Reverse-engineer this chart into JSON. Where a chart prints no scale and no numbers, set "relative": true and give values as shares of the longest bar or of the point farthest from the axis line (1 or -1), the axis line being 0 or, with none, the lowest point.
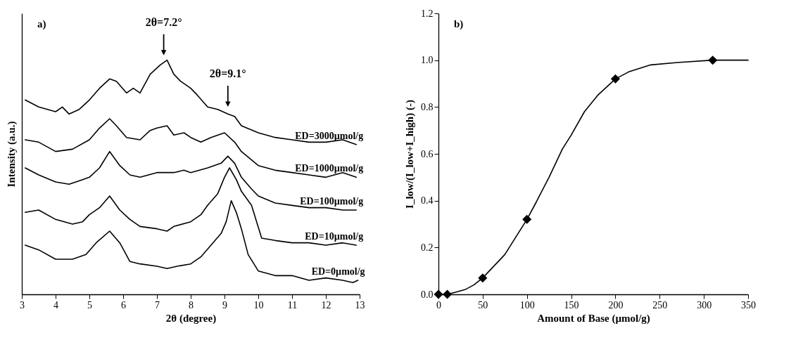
{
  "chart_data": [
    {
      "type": "line",
      "title": "a)",
      "xlabel": "2θ (degree)",
      "ylabel": "Intensity (a.u.)",
      "relative": true,
      "tick_labels": "x",
      "xlim": [
        3,
        13
      ],
      "xticks": [
        3,
        4,
        5,
        6,
        7,
        8,
        9,
        10,
        11,
        12,
        13
      ],
      "grid": false,
      "legend": false,
      "marker": "none",
      "line_style": "solid",
      "annotations": [
        {
          "text": "2θ=7.2°",
          "x": 7.2,
          "y": 1.0
        },
        {
          "text": "2θ=9.1°",
          "x": 9.1,
          "y": 0.78
        }
      ],
      "series": [
        {
          "name": "ED=3000µmol/g",
          "color": "#000000",
          "x": [
            3.1,
            3.5,
            4.0,
            4.2,
            4.4,
            4.7,
            5.0,
            5.3,
            5.6,
            5.8,
            6.1,
            6.3,
            6.5,
            6.8,
            7.1,
            7.3,
            7.5,
            7.7,
            8.0,
            8.2,
            8.5,
            8.8,
            9.1,
            9.3,
            9.5,
            10.0,
            10.5,
            11.0,
            11.5,
            12.0,
            12.5,
            12.9
          ],
          "values": [
            0.83,
            0.8,
            0.78,
            0.8,
            0.77,
            0.79,
            0.83,
            0.88,
            0.92,
            0.91,
            0.86,
            0.88,
            0.86,
            0.94,
            0.98,
            1.0,
            0.94,
            0.91,
            0.88,
            0.85,
            0.8,
            0.79,
            0.77,
            0.76,
            0.72,
            0.69,
            0.67,
            0.66,
            0.65,
            0.65,
            0.66,
            0.64
          ]
        },
        {
          "name": "ED=1000µmol/g",
          "color": "#000000",
          "x": [
            3.1,
            3.5,
            4.0,
            4.5,
            5.0,
            5.3,
            5.6,
            5.8,
            6.1,
            6.5,
            6.8,
            7.0,
            7.3,
            7.5,
            7.8,
            8.0,
            8.3,
            8.6,
            9.0,
            9.3,
            9.5,
            10.0,
            10.5,
            11.0,
            11.5,
            12.0,
            12.5,
            12.9
          ],
          "values": [
            0.66,
            0.65,
            0.61,
            0.62,
            0.66,
            0.71,
            0.75,
            0.72,
            0.67,
            0.66,
            0.7,
            0.71,
            0.72,
            0.68,
            0.69,
            0.67,
            0.65,
            0.67,
            0.69,
            0.65,
            0.61,
            0.55,
            0.53,
            0.52,
            0.51,
            0.5,
            0.52,
            0.5
          ]
        },
        {
          "name": "ED=100µmol/g",
          "color": "#000000",
          "x": [
            3.1,
            3.5,
            4.0,
            4.4,
            4.8,
            5.0,
            5.3,
            5.6,
            5.9,
            6.2,
            6.5,
            7.0,
            7.5,
            7.8,
            8.0,
            8.5,
            8.9,
            9.1,
            9.3,
            9.5,
            9.8,
            10.0,
            10.5,
            11.0,
            11.5,
            12.0,
            12.5,
            12.9
          ],
          "values": [
            0.54,
            0.51,
            0.48,
            0.47,
            0.49,
            0.5,
            0.54,
            0.61,
            0.55,
            0.51,
            0.5,
            0.52,
            0.52,
            0.53,
            0.52,
            0.54,
            0.56,
            0.59,
            0.56,
            0.5,
            0.45,
            0.42,
            0.39,
            0.38,
            0.37,
            0.37,
            0.36,
            0.36
          ]
        },
        {
          "name": "ED=10µmol/g",
          "color": "#000000",
          "x": [
            3.1,
            3.5,
            4.0,
            4.5,
            4.8,
            5.0,
            5.3,
            5.6,
            5.9,
            6.2,
            6.5,
            7.0,
            7.3,
            7.5,
            8.0,
            8.3,
            8.5,
            8.8,
            9.0,
            9.15,
            9.35,
            9.5,
            9.8,
            10.1,
            10.5,
            11.0,
            11.5,
            12.0,
            12.5,
            12.9
          ],
          "values": [
            0.35,
            0.36,
            0.32,
            0.3,
            0.31,
            0.34,
            0.37,
            0.42,
            0.36,
            0.32,
            0.29,
            0.28,
            0.27,
            0.29,
            0.31,
            0.34,
            0.38,
            0.43,
            0.5,
            0.54,
            0.49,
            0.44,
            0.38,
            0.24,
            0.23,
            0.22,
            0.22,
            0.21,
            0.22,
            0.21
          ]
        },
        {
          "name": "ED=0µmol/g",
          "color": "#000000",
          "x": [
            3.1,
            3.5,
            4.0,
            4.5,
            4.9,
            5.2,
            5.6,
            5.9,
            6.2,
            6.5,
            7.0,
            7.3,
            7.6,
            8.0,
            8.3,
            8.6,
            8.9,
            9.05,
            9.2,
            9.35,
            9.5,
            9.7,
            10.0,
            10.5,
            11.0,
            11.5,
            12.0,
            12.5,
            12.8,
            12.95
          ],
          "values": [
            0.21,
            0.19,
            0.15,
            0.15,
            0.17,
            0.22,
            0.27,
            0.22,
            0.14,
            0.13,
            0.12,
            0.11,
            0.12,
            0.13,
            0.16,
            0.21,
            0.26,
            0.31,
            0.4,
            0.35,
            0.28,
            0.17,
            0.1,
            0.08,
            0.08,
            0.06,
            0.07,
            0.06,
            0.05,
            0.06
          ]
        }
      ]
    },
    {
      "type": "scatter",
      "title": "b)",
      "xlabel": "Amount of Base (µmol/g)",
      "ylabel": "I_low/(I_low+I_high) (-)",
      "xlim": [
        0,
        350
      ],
      "xticks": [
        0,
        50,
        100,
        150,
        200,
        250,
        300,
        350
      ],
      "ylim": [
        0,
        1.2
      ],
      "yticks": [
        {
          "value": 0,
          "label": "0.0"
        },
        0.2,
        0.4,
        0.6,
        0.8,
        {
          "value": 1,
          "label": "1.0"
        },
        1.2
      ],
      "grid": false,
      "legend": false,
      "marker": "diamond",
      "series": [
        {
          "type": "line",
          "color": "#000000",
          "marker": "none",
          "x": [
            0,
            10,
            20,
            30,
            40,
            50,
            60,
            75,
            90,
            100,
            110,
            125,
            140,
            150,
            165,
            180,
            200,
            215,
            240,
            270,
            310,
            350
          ],
          "values": [
            0,
            0,
            0.01,
            0.02,
            0.04,
            0.07,
            0.11,
            0.17,
            0.26,
            0.32,
            0.39,
            0.5,
            0.62,
            0.68,
            0.78,
            0.85,
            0.92,
            0.95,
            0.98,
            0.99,
            1.0,
            1.0
          ]
        },
        {
          "type": "scatter",
          "color": "#000000",
          "x": [
            0,
            10,
            50,
            100,
            200,
            310
          ],
          "values": [
            0,
            0,
            0.07,
            0.32,
            0.92,
            1.0
          ]
        }
      ]
    }
  ]
}
